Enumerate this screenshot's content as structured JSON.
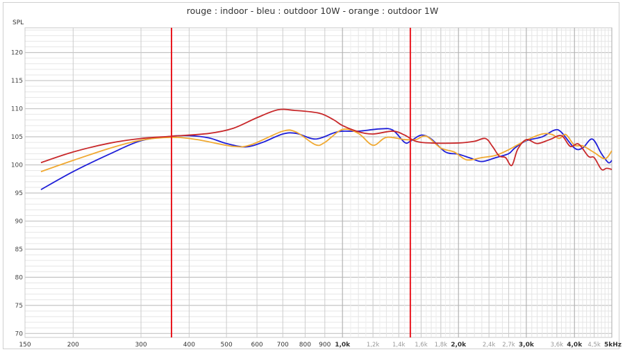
{
  "chart_data": {
    "type": "line",
    "title": "rouge : indoor - bleu : outdoor 10W - orange : outdoor 1W",
    "ylabel": "SPL",
    "xlabel": "",
    "xscale": "log",
    "xlim": [
      150,
      5000
    ],
    "ylim": [
      69.3,
      124.4
    ],
    "grid": true,
    "x_ticks": [
      {
        "v": 150,
        "label": "150",
        "style": "normal"
      },
      {
        "v": 200,
        "label": "200",
        "style": "normal"
      },
      {
        "v": 300,
        "label": "300",
        "style": "normal"
      },
      {
        "v": 400,
        "label": "400",
        "style": "normal"
      },
      {
        "v": 500,
        "label": "500",
        "style": "normal"
      },
      {
        "v": 600,
        "label": "600",
        "style": "normal"
      },
      {
        "v": 700,
        "label": "700",
        "style": "normal"
      },
      {
        "v": 800,
        "label": "800",
        "style": "normal"
      },
      {
        "v": 900,
        "label": "900",
        "style": "normal"
      },
      {
        "v": 1000,
        "label": "1,0k",
        "style": "bold"
      },
      {
        "v": 1200,
        "label": "1,2k",
        "style": "light"
      },
      {
        "v": 1400,
        "label": "1,4k",
        "style": "light"
      },
      {
        "v": 1600,
        "label": "1,6k",
        "style": "light"
      },
      {
        "v": 1800,
        "label": "1,8k",
        "style": "light"
      },
      {
        "v": 2000,
        "label": "2,0k",
        "style": "bold"
      },
      {
        "v": 2400,
        "label": "2,4k",
        "style": "light"
      },
      {
        "v": 2700,
        "label": "2,7k",
        "style": "light"
      },
      {
        "v": 3000,
        "label": "3,0k",
        "style": "bold"
      },
      {
        "v": 3600,
        "label": "3,6k",
        "style": "light"
      },
      {
        "v": 4000,
        "label": "4,0k",
        "style": "bold"
      },
      {
        "v": 4500,
        "label": "4,5k",
        "style": "light"
      },
      {
        "v": 5000,
        "label": "5kHz",
        "style": "bold"
      }
    ],
    "y_ticks": [
      70,
      75,
      80,
      85,
      90,
      95,
      100,
      105,
      110,
      115,
      120
    ],
    "markers": [
      {
        "x": 360,
        "color": "#e8141c"
      },
      {
        "x": 1500,
        "color": "#e8141c"
      }
    ],
    "series": [
      {
        "color": "#1f1fd8",
        "points": [
          [
            165,
            95.6
          ],
          [
            200,
            98.8
          ],
          [
            250,
            102
          ],
          [
            300,
            104.3
          ],
          [
            360,
            105.1
          ],
          [
            400,
            105.2
          ],
          [
            450,
            104.8
          ],
          [
            500,
            103.8
          ],
          [
            560,
            103.2
          ],
          [
            620,
            104
          ],
          [
            700,
            105.5
          ],
          [
            760,
            105.6
          ],
          [
            850,
            104.6
          ],
          [
            950,
            105.7
          ],
          [
            1000,
            106
          ],
          [
            1100,
            106
          ],
          [
            1250,
            106.4
          ],
          [
            1350,
            106.2
          ],
          [
            1450,
            104
          ],
          [
            1500,
            104.2
          ],
          [
            1600,
            105.3
          ],
          [
            1700,
            104.6
          ],
          [
            1850,
            102.3
          ],
          [
            2000,
            101.9
          ],
          [
            2150,
            101.2
          ],
          [
            2300,
            100.6
          ],
          [
            2500,
            101.3
          ],
          [
            2700,
            102
          ],
          [
            2800,
            103
          ],
          [
            3000,
            104.3
          ],
          [
            3300,
            105
          ],
          [
            3550,
            106.2
          ],
          [
            3700,
            105.8
          ],
          [
            4000,
            103
          ],
          [
            4200,
            103
          ],
          [
            4450,
            104.6
          ],
          [
            4700,
            102
          ],
          [
            4900,
            100.4
          ],
          [
            5000,
            100.8
          ]
        ]
      },
      {
        "color": "#f0a830",
        "points": [
          [
            165,
            98.8
          ],
          [
            200,
            100.8
          ],
          [
            250,
            103
          ],
          [
            300,
            104.4
          ],
          [
            360,
            104.9
          ],
          [
            420,
            104.5
          ],
          [
            520,
            103.3
          ],
          [
            580,
            103.6
          ],
          [
            700,
            106
          ],
          [
            760,
            105.8
          ],
          [
            850,
            103.6
          ],
          [
            900,
            104
          ],
          [
            1000,
            106.3
          ],
          [
            1100,
            105.6
          ],
          [
            1200,
            103.5
          ],
          [
            1300,
            104.9
          ],
          [
            1450,
            104.5
          ],
          [
            1550,
            104.5
          ],
          [
            1650,
            105.1
          ],
          [
            1800,
            103
          ],
          [
            1950,
            102.3
          ],
          [
            2100,
            100.9
          ],
          [
            2300,
            101.3
          ],
          [
            2500,
            101.7
          ],
          [
            2700,
            102.7
          ],
          [
            3000,
            104.4
          ],
          [
            3300,
            105.5
          ],
          [
            3500,
            105.4
          ],
          [
            3650,
            104.7
          ],
          [
            3800,
            105.4
          ],
          [
            4000,
            103.5
          ],
          [
            4200,
            103.4
          ],
          [
            4500,
            102.2
          ],
          [
            4800,
            101.1
          ],
          [
            5000,
            102.5
          ]
        ]
      },
      {
        "color": "#c8282a",
        "points": [
          [
            165,
            100.4
          ],
          [
            200,
            102.3
          ],
          [
            250,
            103.9
          ],
          [
            300,
            104.7
          ],
          [
            360,
            105.1
          ],
          [
            450,
            105.6
          ],
          [
            520,
            106.5
          ],
          [
            600,
            108.4
          ],
          [
            680,
            109.8
          ],
          [
            750,
            109.7
          ],
          [
            870,
            109.2
          ],
          [
            950,
            108
          ],
          [
            1000,
            107
          ],
          [
            1100,
            105.9
          ],
          [
            1200,
            105.5
          ],
          [
            1350,
            106
          ],
          [
            1450,
            105.3
          ],
          [
            1550,
            104.2
          ],
          [
            1700,
            103.9
          ],
          [
            2000,
            103.9
          ],
          [
            2200,
            104.2
          ],
          [
            2350,
            104.7
          ],
          [
            2450,
            103.3
          ],
          [
            2550,
            101.6
          ],
          [
            2650,
            101.3
          ],
          [
            2750,
            99.9
          ],
          [
            2850,
            102.8
          ],
          [
            3000,
            104.5
          ],
          [
            3200,
            103.8
          ],
          [
            3450,
            104.5
          ],
          [
            3700,
            105.2
          ],
          [
            3900,
            103.3
          ],
          [
            4100,
            103.7
          ],
          [
            4350,
            101.5
          ],
          [
            4500,
            101.3
          ],
          [
            4700,
            99.2
          ],
          [
            4850,
            99.4
          ],
          [
            5000,
            99.2
          ]
        ]
      }
    ]
  }
}
